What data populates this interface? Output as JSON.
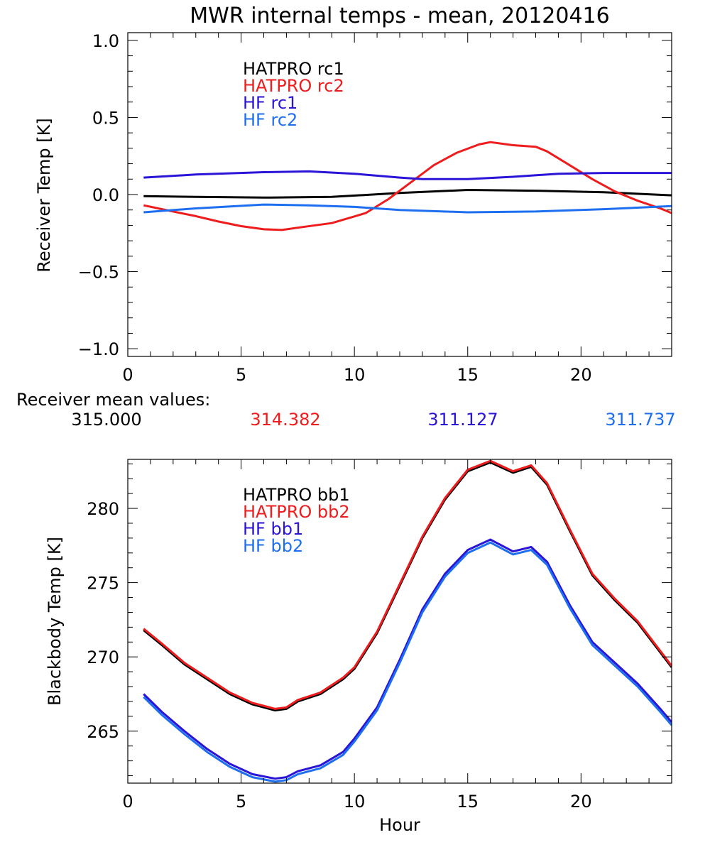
{
  "title": "MWR internal temps - mean, 20120416",
  "colors": {
    "black": "#000000",
    "red": "#ee1c1c",
    "blue": "#2a14d8",
    "lightblue": "#1e6ff0"
  },
  "summary": {
    "label": "Receiver mean values:",
    "values": [
      {
        "text": "315.000",
        "color": "#000000"
      },
      {
        "text": "314.382",
        "color": "#ee1c1c"
      },
      {
        "text": "311.127",
        "color": "#2a14d8"
      },
      {
        "text": "311.737",
        "color": "#1e6ff0"
      }
    ]
  },
  "chart_data": [
    {
      "type": "line",
      "title": "MWR internal temps - mean, 20120416",
      "xlabel": "",
      "ylabel": "Receiver Temp [K]",
      "xlim": [
        0,
        24
      ],
      "ylim": [
        -1.05,
        1.05
      ],
      "xticks": [
        0,
        5,
        10,
        15,
        20
      ],
      "xtick_labels": [
        "0",
        "5",
        "10",
        "15",
        "20"
      ],
      "yticks": [
        -1.0,
        -0.5,
        0.0,
        0.5,
        1.0
      ],
      "ytick_labels": [
        "−1.0",
        "−0.5",
        "0.0",
        "0.5",
        "1.0"
      ],
      "grid": false,
      "legend": "top-left",
      "series": [
        {
          "name": "HATPRO rc1",
          "color": "#000000",
          "x": [
            0.7,
            3,
            6,
            9,
            12,
            15,
            18,
            21,
            24
          ],
          "y": [
            -0.01,
            -0.015,
            -0.02,
            -0.015,
            0.01,
            0.03,
            0.025,
            0.015,
            -0.005
          ]
        },
        {
          "name": "HATPRO rc2",
          "color": "#ee1c1c",
          "x": [
            0.7,
            2,
            3,
            4,
            5,
            6,
            6.8,
            7.5,
            9,
            10.5,
            11.5,
            12.5,
            13.5,
            14.5,
            15.5,
            16,
            17,
            18,
            18.5,
            19.5,
            20.5,
            21.5,
            22.5,
            23.5,
            24
          ],
          "y": [
            -0.07,
            -0.11,
            -0.14,
            -0.175,
            -0.205,
            -0.225,
            -0.23,
            -0.215,
            -0.185,
            -0.12,
            -0.03,
            0.08,
            0.19,
            0.27,
            0.325,
            0.34,
            0.32,
            0.31,
            0.28,
            0.19,
            0.1,
            0.02,
            -0.04,
            -0.09,
            -0.12
          ]
        },
        {
          "name": "HF rc1",
          "color": "#2a14d8",
          "x": [
            0.7,
            3,
            6,
            8,
            10,
            12,
            13,
            15,
            17,
            19,
            21,
            24
          ],
          "y": [
            0.11,
            0.13,
            0.145,
            0.15,
            0.135,
            0.11,
            0.1,
            0.1,
            0.115,
            0.135,
            0.14,
            0.14
          ]
        },
        {
          "name": "HF rc2",
          "color": "#1e6ff0",
          "x": [
            0.7,
            3,
            6,
            8,
            10,
            12,
            15,
            18,
            21,
            24
          ],
          "y": [
            -0.115,
            -0.09,
            -0.065,
            -0.07,
            -0.08,
            -0.1,
            -0.115,
            -0.11,
            -0.095,
            -0.075
          ]
        }
      ]
    },
    {
      "type": "line",
      "title": "",
      "xlabel": "Hour",
      "ylabel": "Blackbody Temp [K]",
      "xlim": [
        0,
        24
      ],
      "ylim": [
        261.5,
        283.3
      ],
      "xticks": [
        0,
        5,
        10,
        15,
        20
      ],
      "xtick_labels": [
        "0",
        "5",
        "10",
        "15",
        "20"
      ],
      "yticks": [
        265,
        270,
        275,
        280
      ],
      "ytick_labels": [
        "265",
        "270",
        "275",
        "280"
      ],
      "grid": false,
      "legend": "top-left",
      "series": [
        {
          "name": "HATPRO bb1",
          "color": "#000000",
          "x": [
            0.7,
            1.5,
            2.5,
            3.5,
            4.5,
            5.5,
            6.5,
            7,
            7.5,
            8.5,
            9.5,
            10,
            11,
            12,
            13,
            14,
            15,
            16,
            17,
            17.8,
            18.5,
            19.5,
            20.5,
            21.5,
            22.5,
            23.5,
            24
          ],
          "y": [
            271.8,
            270.8,
            269.5,
            268.5,
            267.5,
            266.8,
            266.4,
            266.5,
            267,
            267.5,
            268.5,
            269.2,
            271.6,
            274.8,
            278,
            280.6,
            282.5,
            283.1,
            282.4,
            282.8,
            281.6,
            278.5,
            275.5,
            273.8,
            272.3,
            270.3,
            269.3
          ]
        },
        {
          "name": "HATPRO bb2",
          "color": "#ee1c1c",
          "x": [
            0.7,
            1.5,
            2.5,
            3.5,
            4.5,
            5.5,
            6.5,
            7,
            7.5,
            8.5,
            9.5,
            10,
            11,
            12,
            13,
            14,
            15,
            16,
            17,
            17.8,
            18.5,
            19.5,
            20.5,
            21.5,
            22.5,
            23.5,
            24
          ],
          "y": [
            271.9,
            270.9,
            269.6,
            268.6,
            267.6,
            266.9,
            266.5,
            266.6,
            267.1,
            267.6,
            268.6,
            269.3,
            271.7,
            274.9,
            278.1,
            280.7,
            282.6,
            283.2,
            282.5,
            282.9,
            281.7,
            278.6,
            275.6,
            273.9,
            272.4,
            270.4,
            269.4
          ]
        },
        {
          "name": "HF bb1",
          "color": "#2a14d8",
          "x": [
            0.7,
            1.5,
            2.5,
            3.5,
            4.5,
            5.5,
            6.5,
            7,
            7.5,
            8.5,
            9.5,
            10,
            11,
            12,
            13,
            14,
            15,
            16,
            17,
            17.8,
            18.5,
            19.5,
            20.5,
            21.5,
            22.5,
            23.5,
            24
          ],
          "y": [
            267.5,
            266.3,
            265,
            263.8,
            262.8,
            262.1,
            261.8,
            261.9,
            262.3,
            262.7,
            263.6,
            264.5,
            266.6,
            269.8,
            273.2,
            275.6,
            277.2,
            277.9,
            277.1,
            277.4,
            276.4,
            273.5,
            271,
            269.6,
            268.2,
            266.5,
            265.6
          ]
        },
        {
          "name": "HF bb2",
          "color": "#1e6ff0",
          "x": [
            0.7,
            1.5,
            2.5,
            3.5,
            4.5,
            5.5,
            6.5,
            7,
            7.5,
            8.5,
            9.5,
            10,
            11,
            12,
            13,
            14,
            15,
            16,
            17,
            17.8,
            18.5,
            19.5,
            20.5,
            21.5,
            22.5,
            23.5,
            24
          ],
          "y": [
            267.3,
            266.1,
            264.8,
            263.6,
            262.6,
            261.9,
            261.6,
            261.7,
            262.1,
            262.5,
            263.4,
            264.3,
            266.4,
            269.6,
            273,
            275.4,
            277,
            277.7,
            276.9,
            277.2,
            276.2,
            273.3,
            270.8,
            269.4,
            268,
            266.3,
            265.4
          ]
        }
      ]
    }
  ]
}
